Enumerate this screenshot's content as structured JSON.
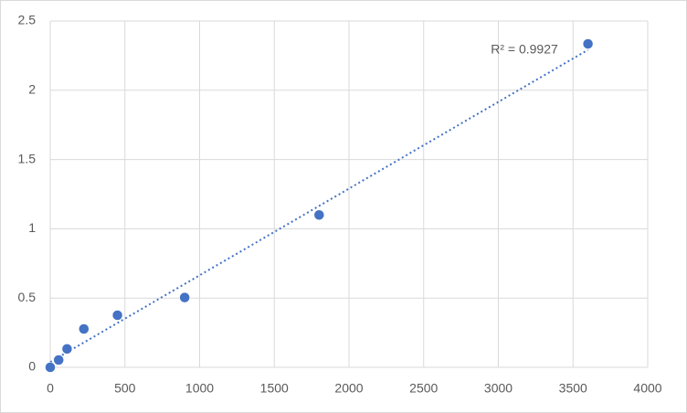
{
  "chart_data": {
    "type": "scatter",
    "annotation": "R² = 0.9927",
    "x": [
      0,
      56.25,
      112.5,
      225,
      450,
      900,
      1800,
      3600
    ],
    "values": [
      0,
      0.053,
      0.133,
      0.277,
      0.376,
      0.504,
      1.1,
      2.335
    ],
    "color": "#4472c4",
    "trendline": "linear",
    "xlim": [
      0,
      4000
    ],
    "xticks": [
      0,
      500,
      1000,
      1500,
      2000,
      2500,
      3000,
      3500,
      4000
    ],
    "ylim": [
      0,
      2.5
    ],
    "yticks": [
      0,
      0.5,
      1,
      1.5,
      2,
      2.5
    ],
    "grid": true
  }
}
